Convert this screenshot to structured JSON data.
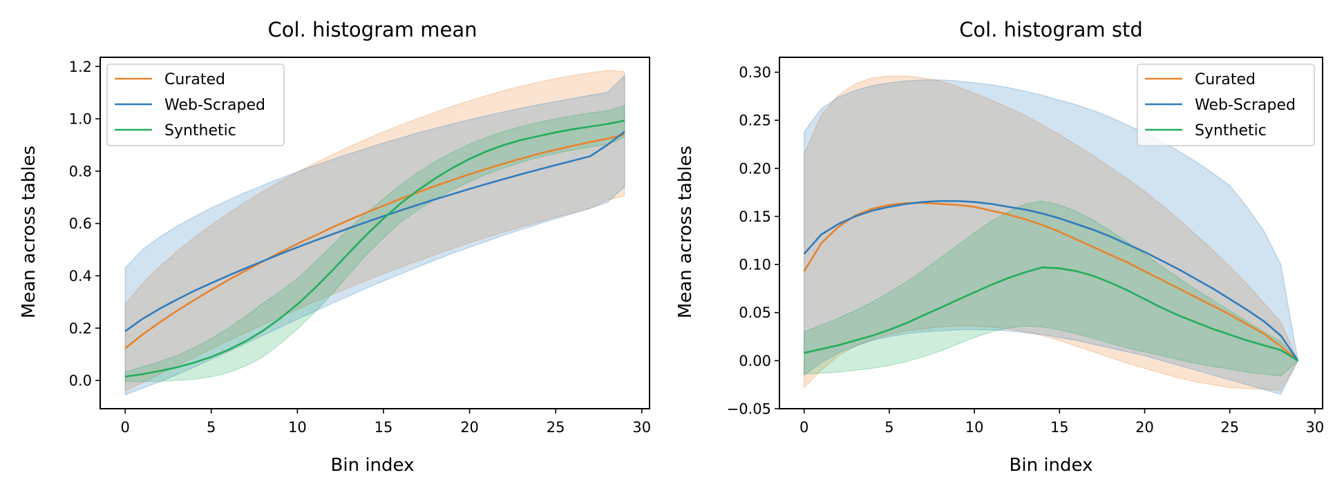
{
  "colors": {
    "curated": "#e8822c",
    "web_scraped": "#2f7bbc",
    "synthetic": "#22ad5c"
  },
  "chart_data": [
    {
      "type": "line",
      "title": "Col. histogram mean",
      "xlabel": "Bin index",
      "ylabel": "Mean across tables",
      "xlim": [
        -1.45,
        30.45
      ],
      "ylim": [
        -0.108,
        1.235
      ],
      "xticks": [
        0,
        5,
        10,
        15,
        20,
        25,
        30
      ],
      "xtick_labels": [
        "0",
        "5",
        "10",
        "15",
        "20",
        "25",
        "30"
      ],
      "yticks": [
        0.0,
        0.2,
        0.4,
        0.6,
        0.8,
        1.0,
        1.2
      ],
      "ytick_labels": [
        "0.0",
        "0.2",
        "0.4",
        "0.6",
        "0.8",
        "1.0",
        "1.2"
      ],
      "legend": {
        "position": "upper left",
        "entries": [
          "Curated",
          "Web-Scraped",
          "Synthetic"
        ]
      },
      "x": [
        0,
        1,
        2,
        3,
        4,
        5,
        6,
        7,
        8,
        9,
        10,
        11,
        12,
        13,
        14,
        15,
        16,
        17,
        18,
        19,
        20,
        21,
        22,
        23,
        24,
        25,
        26,
        27,
        28,
        29
      ],
      "series": [
        {
          "name": "Curated",
          "color_key": "curated",
          "values": [
            0.122,
            0.175,
            0.222,
            0.266,
            0.307,
            0.346,
            0.384,
            0.42,
            0.455,
            0.489,
            0.522,
            0.553,
            0.584,
            0.613,
            0.641,
            0.668,
            0.694,
            0.719,
            0.743,
            0.766,
            0.788,
            0.809,
            0.829,
            0.848,
            0.866,
            0.882,
            0.897,
            0.911,
            0.924,
            0.94
          ],
          "lower": [
            -0.04,
            -0.008,
            0.024,
            0.056,
            0.088,
            0.12,
            0.152,
            0.183,
            0.213,
            0.243,
            0.272,
            0.3,
            0.328,
            0.355,
            0.382,
            0.408,
            0.433,
            0.457,
            0.481,
            0.504,
            0.526,
            0.547,
            0.567,
            0.587,
            0.606,
            0.624,
            0.641,
            0.657,
            0.69,
            0.705
          ],
          "upper": [
            0.29,
            0.37,
            0.435,
            0.493,
            0.546,
            0.594,
            0.639,
            0.682,
            0.722,
            0.76,
            0.796,
            0.83,
            0.862,
            0.893,
            0.922,
            0.95,
            0.976,
            1.001,
            1.025,
            1.048,
            1.069,
            1.089,
            1.108,
            1.125,
            1.14,
            1.154,
            1.166,
            1.176,
            1.185,
            1.18
          ]
        },
        {
          "name": "Web-Scraped",
          "color_key": "web_scraped",
          "values": [
            0.188,
            0.235,
            0.274,
            0.309,
            0.342,
            0.372,
            0.401,
            0.429,
            0.456,
            0.483,
            0.509,
            0.534,
            0.558,
            0.582,
            0.605,
            0.628,
            0.65,
            0.671,
            0.692,
            0.712,
            0.732,
            0.751,
            0.77,
            0.788,
            0.806,
            0.823,
            0.84,
            0.857,
            0.9,
            0.951
          ],
          "lower": [
            -0.055,
            -0.03,
            -0.005,
            0.022,
            0.05,
            0.08,
            0.11,
            0.141,
            0.172,
            0.203,
            0.234,
            0.264,
            0.294,
            0.323,
            0.352,
            0.38,
            0.407,
            0.434,
            0.46,
            0.485,
            0.509,
            0.532,
            0.555,
            0.577,
            0.598,
            0.618,
            0.638,
            0.658,
            0.68,
            0.74
          ],
          "upper": [
            0.43,
            0.5,
            0.548,
            0.589,
            0.625,
            0.659,
            0.69,
            0.719,
            0.746,
            0.772,
            0.797,
            0.821,
            0.844,
            0.866,
            0.887,
            0.908,
            0.927,
            0.946,
            0.964,
            0.981,
            0.997,
            1.012,
            1.027,
            1.041,
            1.054,
            1.066,
            1.078,
            1.09,
            1.101,
            1.165
          ]
        },
        {
          "name": "Synthetic",
          "color_key": "synthetic",
          "values": [
            0.015,
            0.024,
            0.036,
            0.05,
            0.068,
            0.09,
            0.117,
            0.15,
            0.19,
            0.237,
            0.291,
            0.352,
            0.418,
            0.488,
            0.556,
            0.619,
            0.677,
            0.727,
            0.772,
            0.812,
            0.847,
            0.876,
            0.9,
            0.919,
            0.934,
            0.948,
            0.96,
            0.97,
            0.98,
            0.993
          ],
          "lower": [
            -0.004,
            -0.004,
            -0.003,
            0.0,
            0.005,
            0.014,
            0.03,
            0.055,
            0.09,
            0.14,
            0.196,
            0.26,
            0.33,
            0.405,
            0.48,
            0.545,
            0.605,
            0.652,
            0.692,
            0.728,
            0.76,
            0.788,
            0.812,
            0.834,
            0.852,
            0.868,
            0.881,
            0.892,
            0.901,
            0.93
          ],
          "upper": [
            0.033,
            0.052,
            0.072,
            0.095,
            0.125,
            0.16,
            0.2,
            0.245,
            0.295,
            0.34,
            0.39,
            0.45,
            0.515,
            0.581,
            0.64,
            0.695,
            0.748,
            0.795,
            0.836,
            0.872,
            0.903,
            0.929,
            0.952,
            0.97,
            0.986,
            1.0,
            1.012,
            1.022,
            1.031,
            1.05
          ]
        }
      ]
    },
    {
      "type": "line",
      "title": "Col. histogram std",
      "xlabel": "Bin index",
      "ylabel": "Mean across tables",
      "xlim": [
        -1.45,
        30.45
      ],
      "ylim": [
        -0.05,
        0.3155
      ],
      "xticks": [
        0,
        5,
        10,
        15,
        20,
        25,
        30
      ],
      "xtick_labels": [
        "0",
        "5",
        "10",
        "15",
        "20",
        "25",
        "30"
      ],
      "yticks": [
        -0.05,
        0.0,
        0.05,
        0.1,
        0.15,
        0.2,
        0.25,
        0.3
      ],
      "ytick_labels": [
        "−0.05",
        "0.00",
        "0.05",
        "0.10",
        "0.15",
        "0.20",
        "0.25",
        "0.30"
      ],
      "legend": {
        "position": "upper right",
        "entries": [
          "Curated",
          "Web-Scraped",
          "Synthetic"
        ]
      },
      "x": [
        0,
        1,
        2,
        3,
        4,
        5,
        6,
        7,
        8,
        9,
        10,
        11,
        12,
        13,
        14,
        15,
        16,
        17,
        18,
        19,
        20,
        21,
        22,
        23,
        24,
        25,
        26,
        27,
        28,
        29
      ],
      "series": [
        {
          "name": "Curated",
          "color_key": "curated",
          "values": [
            0.093,
            0.122,
            0.139,
            0.151,
            0.158,
            0.162,
            0.164,
            0.164,
            0.163,
            0.162,
            0.16,
            0.156,
            0.152,
            0.147,
            0.141,
            0.134,
            0.126,
            0.118,
            0.11,
            0.102,
            0.093,
            0.084,
            0.075,
            0.066,
            0.057,
            0.048,
            0.038,
            0.028,
            0.015,
            0.0
          ],
          "lower": [
            -0.028,
            -0.01,
            0.005,
            0.015,
            0.022,
            0.027,
            0.031,
            0.033,
            0.035,
            0.036,
            0.036,
            0.035,
            0.033,
            0.03,
            0.026,
            0.021,
            0.015,
            0.009,
            0.003,
            -0.003,
            -0.008,
            -0.013,
            -0.018,
            -0.022,
            -0.025,
            -0.028,
            -0.029,
            -0.03,
            -0.031,
            0.0
          ],
          "upper": [
            0.215,
            0.255,
            0.276,
            0.288,
            0.294,
            0.296,
            0.296,
            0.294,
            0.291,
            0.285,
            0.278,
            0.271,
            0.263,
            0.255,
            0.245,
            0.235,
            0.224,
            0.213,
            0.201,
            0.189,
            0.176,
            0.162,
            0.147,
            0.131,
            0.115,
            0.098,
            0.08,
            0.06,
            0.04,
            0.0
          ]
        },
        {
          "name": "Web-Scraped",
          "color_key": "web_scraped",
          "values": [
            0.111,
            0.131,
            0.142,
            0.15,
            0.156,
            0.16,
            0.163,
            0.165,
            0.166,
            0.166,
            0.165,
            0.163,
            0.16,
            0.157,
            0.153,
            0.148,
            0.142,
            0.136,
            0.129,
            0.121,
            0.113,
            0.104,
            0.095,
            0.085,
            0.075,
            0.064,
            0.053,
            0.041,
            0.026,
            0.0
          ],
          "lower": [
            -0.015,
            -0.002,
            0.008,
            0.015,
            0.021,
            0.025,
            0.028,
            0.03,
            0.031,
            0.032,
            0.032,
            0.032,
            0.031,
            0.029,
            0.027,
            0.024,
            0.021,
            0.017,
            0.013,
            0.009,
            0.005,
            0.0,
            -0.005,
            -0.01,
            -0.015,
            -0.02,
            -0.025,
            -0.03,
            -0.035,
            0.0
          ],
          "upper": [
            0.238,
            0.262,
            0.274,
            0.281,
            0.286,
            0.289,
            0.291,
            0.292,
            0.292,
            0.291,
            0.289,
            0.287,
            0.284,
            0.28,
            0.276,
            0.271,
            0.266,
            0.26,
            0.253,
            0.245,
            0.237,
            0.228,
            0.218,
            0.207,
            0.195,
            0.182,
            0.16,
            0.135,
            0.1,
            0.0
          ]
        },
        {
          "name": "Synthetic",
          "color_key": "synthetic",
          "values": [
            0.008,
            0.012,
            0.016,
            0.021,
            0.026,
            0.032,
            0.039,
            0.047,
            0.055,
            0.063,
            0.071,
            0.079,
            0.086,
            0.092,
            0.097,
            0.096,
            0.093,
            0.088,
            0.081,
            0.073,
            0.064,
            0.055,
            0.047,
            0.04,
            0.033,
            0.027,
            0.021,
            0.016,
            0.011,
            0.0
          ],
          "lower": [
            -0.014,
            -0.013,
            -0.012,
            -0.01,
            -0.008,
            -0.005,
            -0.001,
            0.004,
            0.01,
            0.017,
            0.024,
            0.03,
            0.034,
            0.036,
            0.035,
            0.032,
            0.028,
            0.023,
            0.018,
            0.013,
            0.009,
            0.005,
            0.001,
            -0.003,
            -0.006,
            -0.009,
            -0.012,
            -0.014,
            -0.016,
            0.0
          ],
          "upper": [
            0.03,
            0.037,
            0.044,
            0.052,
            0.061,
            0.071,
            0.082,
            0.094,
            0.107,
            0.12,
            0.133,
            0.145,
            0.155,
            0.163,
            0.166,
            0.162,
            0.155,
            0.146,
            0.135,
            0.123,
            0.111,
            0.098,
            0.086,
            0.074,
            0.063,
            0.052,
            0.041,
            0.03,
            0.02,
            0.0
          ]
        }
      ]
    }
  ]
}
